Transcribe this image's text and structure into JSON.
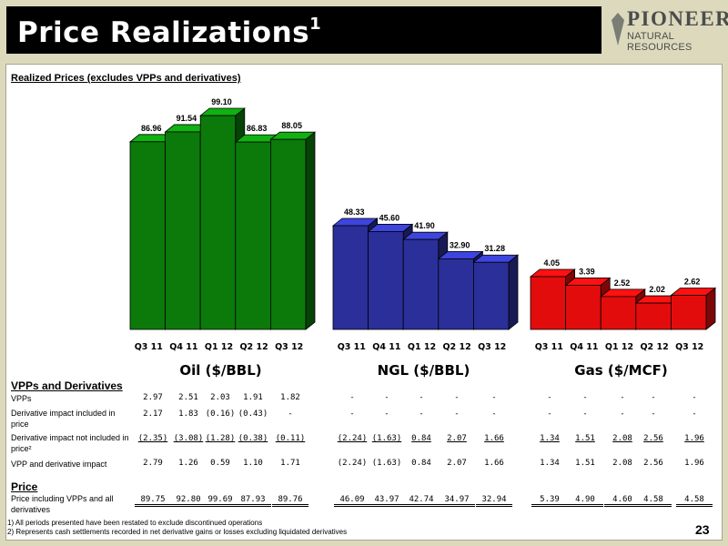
{
  "header": {
    "title": "Price Realizations",
    "title_sup": "1"
  },
  "logo": {
    "name": "PIONEER",
    "sub": "NATURAL RESOURCES"
  },
  "chart_subtitle": "Realized Prices (excludes VPPs and derivatives)",
  "colors": {
    "oil": "#0b7a0b",
    "ngl": "#2b2f99",
    "gas": "#e30c0c"
  },
  "chart_data": [
    {
      "type": "bar",
      "title": "Oil ($/BBL)",
      "categories": [
        "Q3 11",
        "Q4 11",
        "Q1 12",
        "Q2 12",
        "Q3 12"
      ],
      "values": [
        86.96,
        91.54,
        99.1,
        86.83,
        88.05
      ],
      "value_labels": [
        "86.96",
        "91.54",
        "99.10",
        "86.83",
        "88.05"
      ],
      "color": "#0b7a0b"
    },
    {
      "type": "bar",
      "title": "NGL ($/BBL)",
      "categories": [
        "Q3 11",
        "Q4 11",
        "Q1 12",
        "Q2 12",
        "Q3 12"
      ],
      "values": [
        48.33,
        45.6,
        41.9,
        32.9,
        31.28
      ],
      "value_labels": [
        "48.33",
        "45.60",
        "41.90",
        "32.90",
        "31.28"
      ],
      "color": "#2b2f99"
    },
    {
      "type": "bar",
      "title": "Gas ($/MCF)",
      "categories": [
        "Q3 11",
        "Q4 11",
        "Q1 12",
        "Q2 12",
        "Q3 12"
      ],
      "values": [
        4.05,
        3.39,
        2.52,
        2.02,
        2.62
      ],
      "value_labels": [
        "4.05",
        "3.39",
        "2.52",
        "2.02",
        "2.62"
      ],
      "color": "#e30c0c"
    }
  ],
  "table": {
    "vpp_header": "VPPs and Derivatives",
    "price_header": "Price",
    "rows": [
      {
        "label": "VPPs",
        "style": "plain",
        "oil": [
          "2.97",
          "2.51",
          "2.03",
          "1.91",
          "1.82"
        ],
        "ngl": [
          "-",
          "-",
          "-",
          "-",
          "-"
        ],
        "gas": [
          "-",
          "-",
          "-",
          "-",
          "-"
        ]
      },
      {
        "label": "Derivative impact included in price",
        "style": "plain",
        "oil": [
          "2.17",
          "1.83",
          "(0.16)",
          "(0.43)",
          "-"
        ],
        "ngl": [
          "-",
          "-",
          "-",
          "-",
          "-"
        ],
        "gas": [
          "-",
          "-",
          "-",
          "-",
          "-"
        ]
      },
      {
        "label": "Derivative impact not included in price²",
        "style": "underline",
        "oil": [
          "(2.35)",
          "(3.08)",
          "(1.28)",
          "(0.38)",
          "(0.11)"
        ],
        "ngl": [
          "(2.24)",
          "(1.63)",
          "0.84",
          "2.07",
          "1.66"
        ],
        "gas": [
          "1.34",
          "1.51",
          "2.08",
          "2.56",
          "1.96"
        ]
      },
      {
        "label": "VPP and derivative impact",
        "style": "plain",
        "oil": [
          "2.79",
          "1.26",
          "0.59",
          "1.10",
          "1.71"
        ],
        "ngl": [
          "(2.24)",
          "(1.63)",
          "0.84",
          "2.07",
          "1.66"
        ],
        "gas": [
          "1.34",
          "1.51",
          "2.08",
          "2.56",
          "1.96"
        ]
      },
      {
        "label": "Price including VPPs and all derivatives",
        "style": "double",
        "oil": [
          "89.75",
          "92.80",
          "99.69",
          "87.93",
          "89.76"
        ],
        "ngl": [
          "46.09",
          "43.97",
          "42.74",
          "34.97",
          "32.94"
        ],
        "gas": [
          "5.39",
          "4.90",
          "4.60",
          "4.58",
          "4.58"
        ]
      }
    ]
  },
  "footnotes": [
    "1) All periods presented have been restated to exclude discontinued operations",
    "2) Represents cash settlements recorded in net derivative gains or losses excluding liquidated derivatives"
  ],
  "page_number": "23"
}
